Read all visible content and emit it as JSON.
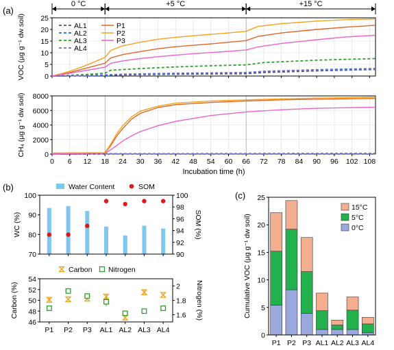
{
  "panel_labels": {
    "a": "(a)",
    "b": "(b)",
    "c": "(c)"
  },
  "phases": [
    {
      "label": "0 °C",
      "start": 0,
      "end": 18
    },
    {
      "label": "+5 °C",
      "start": 18,
      "end": 66
    },
    {
      "label": "+15 °C",
      "start": 66,
      "end": 110
    }
  ],
  "colors": {
    "AL1": "#555555",
    "AL2": "#1f6fd1",
    "AL3": "#2aa02a",
    "AL4": "#6b6bd6",
    "P1": "#e0652a",
    "P2": "#f2a31b",
    "P3": "#ef62c8",
    "water_content": "#7ec8f0",
    "som": "#e0161b",
    "carbon": "#f2a31b",
    "nitrogen": "#2aa02a",
    "c_15": "#f3ae90",
    "c_5": "#22b14c",
    "c_0": "#9aa8de"
  },
  "chart_data": [
    {
      "id": "voc",
      "type": "line",
      "ylabel": "VOC (µg g⁻¹ dw soil)",
      "ylim": [
        0,
        25
      ],
      "yticks": [
        0,
        5,
        10,
        15,
        20,
        25
      ],
      "xlim": [
        0,
        110
      ],
      "grid": true,
      "legend": "top-left",
      "series": [
        {
          "name": "AL1",
          "style": "dashed",
          "points": [
            [
              0,
              0
            ],
            [
              6,
              0.1
            ],
            [
              12,
              0.2
            ],
            [
              18,
              0.3
            ],
            [
              24,
              0.5
            ],
            [
              42,
              0.8
            ],
            [
              66,
              1.0
            ],
            [
              72,
              1.5
            ],
            [
              90,
              2.2
            ],
            [
              110,
              2.8
            ]
          ]
        },
        {
          "name": "AL2",
          "style": "dashed",
          "points": [
            [
              0,
              0
            ],
            [
              6,
              0.1
            ],
            [
              12,
              0.2
            ],
            [
              18,
              0.3
            ],
            [
              24,
              0.6
            ],
            [
              42,
              1.0
            ],
            [
              66,
              1.3
            ],
            [
              72,
              2.0
            ],
            [
              90,
              2.7
            ],
            [
              110,
              3.2
            ]
          ]
        },
        {
          "name": "AL3",
          "style": "dashed",
          "points": [
            [
              0,
              0
            ],
            [
              6,
              0.3
            ],
            [
              12,
              0.7
            ],
            [
              18,
              1.2
            ],
            [
              20,
              2.5
            ],
            [
              30,
              3.2
            ],
            [
              42,
              3.9
            ],
            [
              54,
              4.4
            ],
            [
              66,
              4.8
            ],
            [
              72,
              5.8
            ],
            [
              90,
              6.8
            ],
            [
              110,
              7.5
            ]
          ]
        },
        {
          "name": "AL4",
          "style": "dashed",
          "points": [
            [
              0,
              0
            ],
            [
              6,
              0.1
            ],
            [
              12,
              0.3
            ],
            [
              18,
              0.5
            ],
            [
              24,
              0.8
            ],
            [
              42,
              1.2
            ],
            [
              66,
              1.5
            ],
            [
              72,
              2.0
            ],
            [
              90,
              2.5
            ],
            [
              110,
              2.9
            ]
          ]
        },
        {
          "name": "P1",
          "style": "solid",
          "points": [
            [
              0,
              0
            ],
            [
              6,
              1.5
            ],
            [
              12,
              3.5
            ],
            [
              18,
              5.5
            ],
            [
              20,
              7.8
            ],
            [
              24,
              9.2
            ],
            [
              30,
              10.5
            ],
            [
              36,
              11.7
            ],
            [
              42,
              12.6
            ],
            [
              48,
              13.2
            ],
            [
              54,
              13.8
            ],
            [
              60,
              14.5
            ],
            [
              66,
              15.2
            ],
            [
              70,
              17
            ],
            [
              78,
              18.5
            ],
            [
              90,
              20
            ],
            [
              100,
              21
            ],
            [
              110,
              21.8
            ]
          ]
        },
        {
          "name": "P2",
          "style": "solid",
          "points": [
            [
              0,
              0
            ],
            [
              6,
              2
            ],
            [
              12,
              4.8
            ],
            [
              18,
              8
            ],
            [
              20,
              11
            ],
            [
              24,
              13
            ],
            [
              30,
              14.5
            ],
            [
              36,
              15.8
            ],
            [
              42,
              16.6
            ],
            [
              48,
              17.3
            ],
            [
              54,
              17.9
            ],
            [
              60,
              18.5
            ],
            [
              66,
              19.2
            ],
            [
              70,
              21.3
            ],
            [
              78,
              22.5
            ],
            [
              90,
              23.6
            ],
            [
              100,
              24.2
            ],
            [
              110,
              24.5
            ]
          ]
        },
        {
          "name": "P3",
          "style": "solid",
          "points": [
            [
              0,
              0
            ],
            [
              6,
              1.2
            ],
            [
              12,
              2.5
            ],
            [
              18,
              3.8
            ],
            [
              20,
              5.5
            ],
            [
              24,
              6.5
            ],
            [
              30,
              7.5
            ],
            [
              36,
              8.3
            ],
            [
              42,
              9.0
            ],
            [
              48,
              9.6
            ],
            [
              54,
              10.1
            ],
            [
              60,
              10.6
            ],
            [
              66,
              11.2
            ],
            [
              70,
              12.5
            ],
            [
              78,
              14
            ],
            [
              90,
              15.6
            ],
            [
              100,
              16.8
            ],
            [
              110,
              17.5
            ]
          ]
        }
      ]
    },
    {
      "id": "ch4",
      "type": "line",
      "ylabel": "CH₄ (µg g⁻¹ dw soil)",
      "xlabel": "Incubation time (h)",
      "ylim": [
        0,
        8000
      ],
      "yticks": [
        0,
        2000,
        4000,
        6000,
        8000
      ],
      "xlim": [
        0,
        110
      ],
      "xticks": [
        0,
        6,
        12,
        18,
        24,
        30,
        36,
        42,
        48,
        54,
        60,
        66,
        72,
        78,
        84,
        90,
        96,
        102,
        108
      ],
      "grid": true,
      "series": [
        {
          "name": "P1",
          "style": "solid",
          "points": [
            [
              0,
              100
            ],
            [
              18,
              150
            ],
            [
              20,
              1200
            ],
            [
              22,
              2500
            ],
            [
              24,
              3500
            ],
            [
              27,
              4800
            ],
            [
              30,
              5600
            ],
            [
              36,
              6400
            ],
            [
              42,
              6800
            ],
            [
              54,
              7100
            ],
            [
              66,
              7300
            ],
            [
              78,
              7450
            ],
            [
              90,
              7550
            ],
            [
              110,
              7650
            ]
          ]
        },
        {
          "name": "P2",
          "style": "solid",
          "points": [
            [
              0,
              150
            ],
            [
              18,
              200
            ],
            [
              20,
              1400
            ],
            [
              22,
              2800
            ],
            [
              24,
              3900
            ],
            [
              27,
              5100
            ],
            [
              30,
              5900
            ],
            [
              36,
              6600
            ],
            [
              42,
              7000
            ],
            [
              54,
              7300
            ],
            [
              66,
              7450
            ],
            [
              78,
              7600
            ],
            [
              90,
              7700
            ],
            [
              110,
              7800
            ]
          ]
        },
        {
          "name": "P3",
          "style": "solid",
          "points": [
            [
              0,
              50
            ],
            [
              18,
              100
            ],
            [
              20,
              600
            ],
            [
              22,
              1200
            ],
            [
              24,
              1800
            ],
            [
              27,
              2500
            ],
            [
              30,
              3100
            ],
            [
              36,
              3900
            ],
            [
              42,
              4500
            ],
            [
              54,
              5300
            ],
            [
              66,
              5800
            ],
            [
              78,
              6100
            ],
            [
              90,
              6300
            ],
            [
              110,
              6450
            ]
          ]
        },
        {
          "name": "AL1",
          "style": "dashed",
          "points": [
            [
              0,
              30
            ],
            [
              110,
              60
            ]
          ]
        },
        {
          "name": "AL2",
          "style": "dashed",
          "points": [
            [
              0,
              30
            ],
            [
              110,
              80
            ]
          ]
        },
        {
          "name": "AL3",
          "style": "dashed",
          "points": [
            [
              0,
              40
            ],
            [
              110,
              90
            ]
          ]
        },
        {
          "name": "AL4",
          "style": "dashed",
          "points": [
            [
              0,
              30
            ],
            [
              110,
              70
            ]
          ]
        }
      ]
    },
    {
      "id": "wc_som",
      "type": "bar",
      "ylabel": "WC (%)",
      "y2label": "SOM (%)",
      "ylim": [
        70,
        100
      ],
      "yticks": [
        70,
        80,
        90,
        100
      ],
      "y2lim": [
        90,
        100
      ],
      "y2ticks": [
        90,
        92,
        94,
        96,
        98,
        100
      ],
      "categories": [
        "P1",
        "P2",
        "P3",
        "AL1",
        "AL2",
        "AL3",
        "AL4"
      ],
      "legend": "top",
      "series": [
        {
          "name": "Water Content",
          "kind": "bar",
          "values": [
            93.5,
            94.5,
            92.0,
            84.0,
            79.5,
            84.5,
            83.0
          ]
        },
        {
          "name": "SOM",
          "kind": "point",
          "values": [
            93.3,
            93.3,
            94.8,
            99.0,
            98.5,
            99.0,
            99.0
          ],
          "errors": [
            0.2,
            0.15,
            0.2,
            0.4,
            0.2,
            0.15,
            0.15
          ]
        }
      ]
    },
    {
      "id": "carbon_nitrogen",
      "type": "scatter",
      "ylabel": "Carbon (%)",
      "y2label": "Nitrogen (%)",
      "ylim": [
        46,
        54
      ],
      "yticks": [
        46,
        48,
        50,
        52,
        54
      ],
      "y2lim": [
        1.5,
        2.1
      ],
      "y2ticks": [
        1.6,
        1.8,
        2.0
      ],
      "categories": [
        "P1",
        "P2",
        "P3",
        "AL1",
        "AL2",
        "AL3",
        "AL4"
      ],
      "legend": "top",
      "series": [
        {
          "name": "Carbon",
          "values": [
            50.1,
            50.2,
            50.3,
            50.7,
            46.8,
            51.5,
            51.0
          ],
          "errors": [
            0.4,
            0.2,
            0.2,
            0.4,
            0.3,
            0.4,
            0.2
          ]
        },
        {
          "name": "Nitrogen",
          "values": [
            1.69,
            1.93,
            1.86,
            1.78,
            1.62,
            1.65,
            1.69
          ],
          "errors": [
            0.015,
            0.02,
            0.015,
            0.06,
            0.015,
            0.01,
            0.01
          ]
        }
      ]
    },
    {
      "id": "cumulative_voc",
      "type": "bar",
      "stacked": true,
      "ylabel": "Cumulative VOC (µg g⁻¹ dw soil)",
      "ylim": [
        0,
        25
      ],
      "yticks": [
        0,
        5,
        10,
        15,
        20,
        25
      ],
      "categories": [
        "P1",
        "P2",
        "P3",
        "AL1",
        "AL2",
        "AL3",
        "AL4"
      ],
      "legend": "top-right",
      "series": [
        {
          "name": "0°C",
          "values": [
            5.4,
            8.2,
            3.9,
            1.0,
            1.0,
            1.0,
            0.4
          ]
        },
        {
          "name": "5°C",
          "values": [
            9.8,
            11.0,
            7.6,
            3.4,
            0.8,
            3.5,
            1.6
          ]
        },
        {
          "name": "15°C",
          "values": [
            7.0,
            5.2,
            6.2,
            3.2,
            0.9,
            2.4,
            1.2
          ]
        }
      ]
    }
  ]
}
